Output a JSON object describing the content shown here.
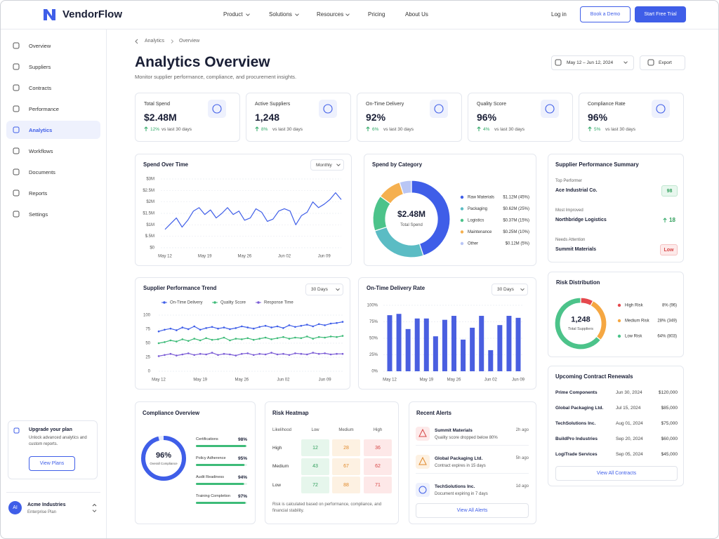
{
  "nav": {
    "brand": "VendorFlow",
    "links": [
      "Product",
      "Solutions",
      "Resources",
      "Pricing",
      "About Us"
    ],
    "login": "Log in",
    "demo": "Book a Demo",
    "trial": "Start Free Trial"
  },
  "sidebar": {
    "items": [
      "Overview",
      "Suppliers",
      "Contracts",
      "Performance",
      "Analytics",
      "Workflows",
      "Documents",
      "Reports",
      "Settings"
    ],
    "active": 4,
    "upgrade": {
      "title": "Upgrade your plan",
      "text": "Unlock advanced analytics and custom reports.",
      "button": "View Plans"
    },
    "user": {
      "initials": "AI",
      "name": "Acme Industries",
      "plan": "Enterprise Plan"
    }
  },
  "header": {
    "breadcrumb": [
      "Analytics",
      "Overview"
    ],
    "title": "Analytics Overview",
    "subtitle": "Monitor supplier performance, compliance, and procurement insights.",
    "date_range": "May 12 – Jun 12, 2024",
    "export": "Export"
  },
  "kpis": [
    {
      "label": "Total Spend",
      "value": "$2.48M",
      "change": "12%",
      "note": "vs last 30 days"
    },
    {
      "label": "Active Suppliers",
      "value": "1,248",
      "change": "8%",
      "note": "vs last 30 days"
    },
    {
      "label": "On-Time Delivery",
      "value": "92%",
      "change": "6%",
      "note": "vs last 30 days"
    },
    {
      "label": "Quality Score",
      "value": "96%",
      "change": "4%",
      "note": "vs last 30 days"
    },
    {
      "label": "Compliance Rate",
      "value": "96%",
      "change": "5%",
      "note": "vs last 30 days"
    }
  ],
  "chart_data": [
    {
      "type": "line",
      "title": "Spend Over Time",
      "dropdown": "Monthly",
      "color": "#3f5ee8",
      "grid": true,
      "categories": [
        "May 12",
        null,
        null,
        null,
        null,
        null,
        null,
        "May 19",
        null,
        null,
        null,
        null,
        null,
        null,
        "May 26",
        null,
        null,
        null,
        null,
        null,
        null,
        "Jun 02",
        null,
        null,
        null,
        null,
        null,
        null,
        "Jun 09",
        null,
        null,
        null
      ],
      "values": [
        0.8,
        1.05,
        1.3,
        0.9,
        1.2,
        1.6,
        1.75,
        1.45,
        1.65,
        1.3,
        1.5,
        1.75,
        1.45,
        1.6,
        1.2,
        1.3,
        1.7,
        1.55,
        1.15,
        1.25,
        1.6,
        1.7,
        1.6,
        1.0,
        1.4,
        1.55,
        2.0,
        1.75,
        1.9,
        2.1,
        2.4,
        2.1
      ],
      "ylim": [
        0,
        3
      ],
      "yticks": [
        {
          "value": 0,
          "label": "$0"
        },
        {
          "value": 0.5,
          "label": "$.5M"
        },
        {
          "value": 1,
          "label": "$1M"
        },
        {
          "value": 1.5,
          "label": "$1.5M"
        },
        {
          "value": 2,
          "label": "$2M"
        },
        {
          "value": 2.5,
          "label": "$2.5M"
        },
        {
          "value": 3,
          "label": "$3M"
        }
      ]
    },
    {
      "type": "pie",
      "title": "Spend by Category",
      "center_value": "$2.48M",
      "center_label": "Total Spend",
      "categories": [
        "Raw Materials",
        "Packaging",
        "Logistics",
        "Maintenance",
        "Other"
      ],
      "values": [
        45,
        25,
        15,
        10,
        5
      ],
      "value_labels": [
        "$1.12M (45%)",
        "$0.62M (25%)",
        "$0.37M (15%)",
        "$0.25M (10%)",
        "$0.12M (5%)"
      ],
      "colors": [
        "#3f5ee8",
        "#5bbcc4",
        "#4cc38a",
        "#f5b04f",
        "#b9c6f5"
      ]
    },
    {
      "type": "line",
      "title": "Supplier Performance Trend",
      "dropdown": "30 Days",
      "grid": true,
      "markers": true,
      "categories": [
        "May 12",
        null,
        null,
        null,
        null,
        null,
        null,
        "May 19",
        null,
        null,
        null,
        null,
        null,
        null,
        "May 26",
        null,
        null,
        null,
        null,
        null,
        null,
        "Jun 02",
        null,
        null,
        null,
        null,
        null,
        null,
        "Jun 09",
        null,
        null,
        null
      ],
      "series": [
        {
          "name": "On-Time Delivery",
          "color": "#3f5ee8",
          "values": [
            71,
            74,
            76,
            73,
            78,
            75,
            80,
            74,
            77,
            79,
            76,
            78,
            75,
            77,
            80,
            78,
            76,
            79,
            81,
            78,
            80,
            77,
            82,
            79,
            81,
            83,
            80,
            84,
            82,
            85,
            86,
            88
          ]
        },
        {
          "name": "Quality Score",
          "color": "#3dbb78",
          "values": [
            50,
            52,
            55,
            53,
            57,
            54,
            58,
            55,
            59,
            56,
            57,
            60,
            55,
            58,
            57,
            59,
            56,
            58,
            60,
            57,
            59,
            61,
            58,
            60,
            59,
            62,
            58,
            61,
            60,
            62,
            61,
            63
          ]
        },
        {
          "name": "Response Time",
          "color": "#7b5cd6",
          "values": [
            27,
            29,
            31,
            28,
            30,
            32,
            29,
            31,
            30,
            33,
            29,
            31,
            30,
            28,
            31,
            32,
            29,
            31,
            30,
            33,
            30,
            31,
            29,
            32,
            31,
            30,
            33,
            31,
            32,
            30,
            31,
            31
          ]
        }
      ],
      "ylim": [
        0,
        100
      ],
      "yticks": [
        0,
        25,
        50,
        75,
        100
      ]
    },
    {
      "type": "bar",
      "title": "On-Time Delivery Rate",
      "dropdown": "30 Days",
      "color": "#4a5fe0",
      "grid": true,
      "categories": [
        "May 12",
        null,
        null,
        null,
        "May 19",
        null,
        null,
        "May 26",
        null,
        null,
        null,
        "Jun 02",
        null,
        null,
        "Jun 09"
      ],
      "values": [
        85,
        87,
        64,
        80,
        80,
        53,
        78,
        84,
        48,
        66,
        84,
        32,
        70,
        84,
        81
      ],
      "ylim": [
        0,
        100
      ],
      "yticks": [
        {
          "value": 0,
          "label": "0%"
        },
        {
          "value": 25,
          "label": "25%"
        },
        {
          "value": 50,
          "label": "50%"
        },
        {
          "value": 75,
          "label": "75%"
        },
        {
          "value": 100,
          "label": "100%"
        }
      ]
    },
    {
      "type": "pie",
      "title": "Risk Distribution",
      "center_value": "1,248",
      "center_label": "Total Suppliers",
      "categories": [
        "High Risk",
        "Medium Risk",
        "Low Risk"
      ],
      "values": [
        8,
        28,
        64
      ],
      "value_labels": [
        "8% (96)",
        "28% (349)",
        "64% (803)"
      ],
      "colors": [
        "#e5484d",
        "#f5a742",
        "#4cc38a"
      ]
    }
  ],
  "performance_summary": {
    "title": "Supplier Performance Summary",
    "items": [
      {
        "label": "Top Performer",
        "name": "Ace Industrial Co.",
        "badge": "98"
      },
      {
        "label": "Most Improved",
        "name": "Northbridge Logistics",
        "badge": "18"
      },
      {
        "label": "Needs Attention",
        "name": "Summit Materials",
        "badge": "Low"
      }
    ]
  },
  "renewals": {
    "title": "Upcoming Contract Renewals",
    "rows": [
      [
        "Prime Components",
        "Jun 30, 2024",
        "$120,000"
      ],
      [
        "Global Packaging Ltd.",
        "Jul 15, 2024",
        "$85,000"
      ],
      [
        "TechSolutions Inc.",
        "Aug 01, 2024",
        "$75,000"
      ],
      [
        "BuildPro Industries",
        "Sep 20, 2024",
        "$60,000"
      ],
      [
        "LogiTrade Services",
        "Sep 05, 2024",
        "$45,000"
      ]
    ],
    "button": "View All Contracts"
  },
  "compliance": {
    "title": "Compliance Overview",
    "overall": 96,
    "overall_label": "96%",
    "overall_caption": "Overall Compliance",
    "items": [
      {
        "label": "Certifications",
        "value": 98,
        "value_label": "98%"
      },
      {
        "label": "Policy Adherence",
        "value": 95,
        "value_label": "95%"
      },
      {
        "label": "Audit Readiness",
        "value": 94,
        "value_label": "94%"
      },
      {
        "label": "Training Completion",
        "value": 97,
        "value_label": "97%"
      }
    ]
  },
  "heatmap": {
    "title": "Risk Heatmap",
    "columns": [
      "Likelihood",
      "Low",
      "Medium",
      "High"
    ],
    "rows": [
      {
        "label": "High",
        "values": [
          12,
          28,
          36
        ]
      },
      {
        "label": "Medium",
        "values": [
          43,
          67,
          62
        ]
      },
      {
        "label": "Low",
        "values": [
          72,
          88,
          71
        ]
      }
    ],
    "note": "Risk is calculated based on performance, compliance, and financial stability."
  },
  "alerts": {
    "title": "Recent Alerts",
    "items": [
      {
        "name": "Summit Materials",
        "message": "Quality score dropped below 80%",
        "time": "2h ago"
      },
      {
        "name": "Global Packaging Ltd.",
        "message": "Contract expires in 15 days",
        "time": "5h ago"
      },
      {
        "name": "TechSolutions Inc.",
        "message": "Document expiring in 7 days",
        "time": "1d ago"
      }
    ],
    "button": "View All Alerts"
  }
}
